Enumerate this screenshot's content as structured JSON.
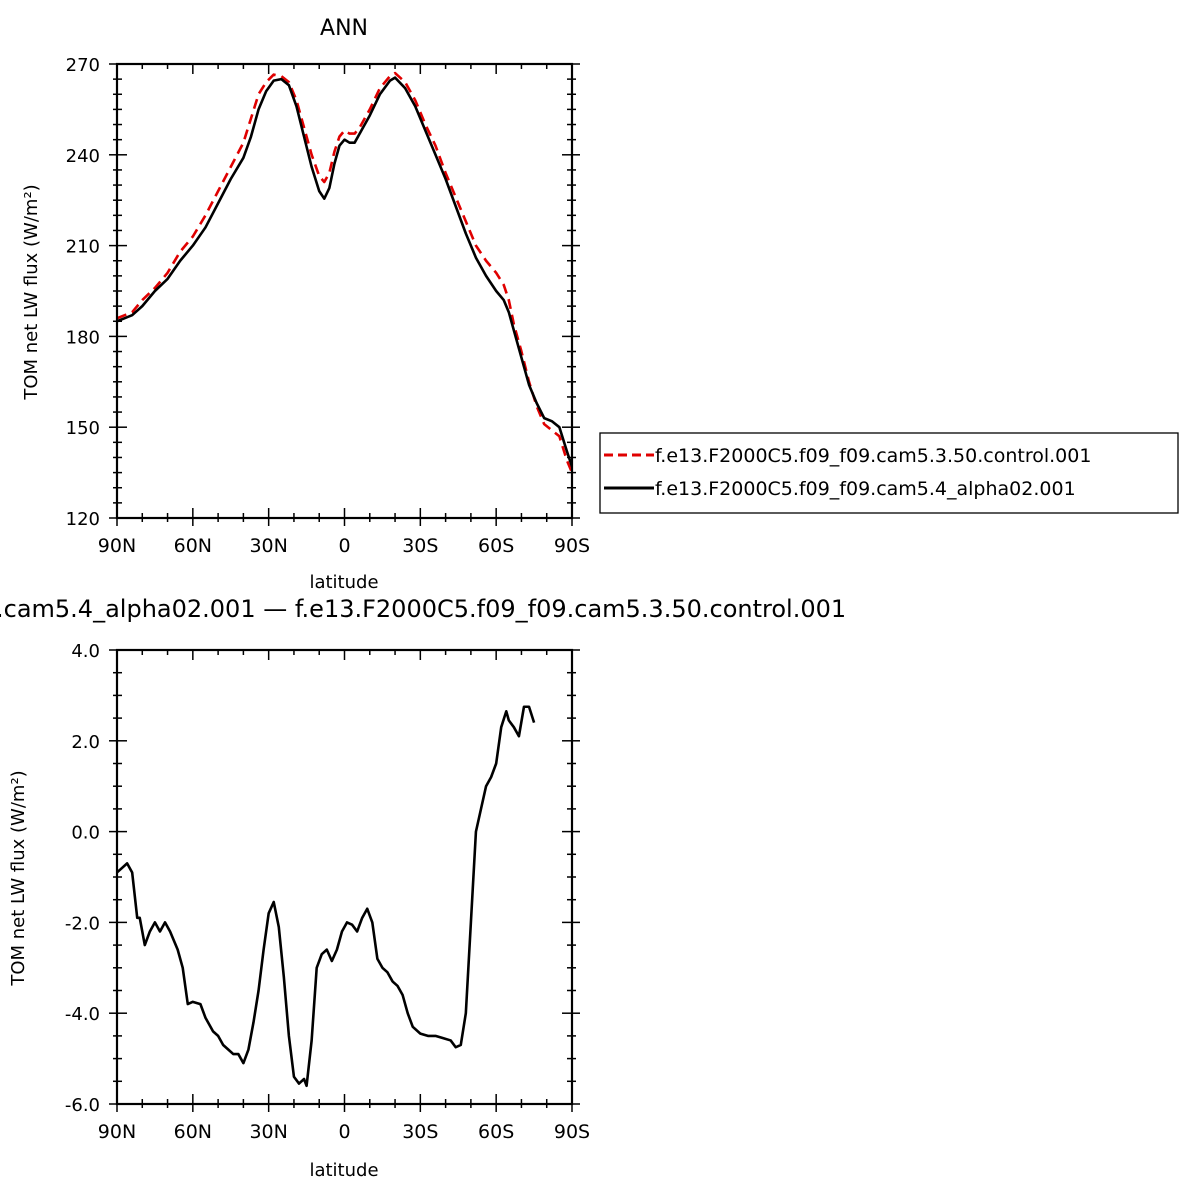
{
  "chart_data": [
    {
      "type": "line",
      "title": "ANN",
      "xlabel": "latitude",
      "ylabel": "TOM net LW flux (W/m²)",
      "xlim": [
        90,
        -90
      ],
      "ylim": [
        120,
        270
      ],
      "x_ticks": [
        "90N",
        "60N",
        "30N",
        "0",
        "30S",
        "60S",
        "90S"
      ],
      "y_ticks": [
        "120",
        "150",
        "180",
        "210",
        "240",
        "270"
      ],
      "legend_position": "right",
      "series": [
        {
          "name": "f.e13.F2000C5.f09_f09.cam5.3.50.control.001",
          "color": "#e00000",
          "style": "dashed",
          "points": [
            [
              90,
              186
            ],
            [
              84,
              188
            ],
            [
              80,
              192
            ],
            [
              75,
              196
            ],
            [
              70,
              201
            ],
            [
              65,
              208
            ],
            [
              60,
              213
            ],
            [
              55,
              220
            ],
            [
              50,
              228
            ],
            [
              45,
              236
            ],
            [
              40,
              244
            ],
            [
              37,
              252
            ],
            [
              34,
              260
            ],
            [
              31,
              264
            ],
            [
              28,
              266.5
            ],
            [
              25,
              266
            ],
            [
              22,
              264
            ],
            [
              19,
              258
            ],
            [
              16,
              249
            ],
            [
              13,
              240
            ],
            [
              10,
              233
            ],
            [
              8,
              231
            ],
            [
              6,
              234
            ],
            [
              4,
              241
            ],
            [
              2,
              246
            ],
            [
              0,
              248
            ],
            [
              -2,
              247
            ],
            [
              -4,
              247
            ],
            [
              -6,
              249
            ],
            [
              -10,
              255
            ],
            [
              -14,
              262
            ],
            [
              -18,
              266
            ],
            [
              -20,
              267
            ],
            [
              -24,
              264
            ],
            [
              -28,
              258
            ],
            [
              -32,
              250
            ],
            [
              -36,
              243
            ],
            [
              -40,
              234
            ],
            [
              -44,
              226
            ],
            [
              -48,
              218
            ],
            [
              -52,
              210
            ],
            [
              -56,
              205
            ],
            [
              -60,
              201
            ],
            [
              -63,
              197
            ],
            [
              -65,
              192
            ],
            [
              -67,
              184
            ],
            [
              -70,
              175
            ],
            [
              -73,
              165
            ],
            [
              -76,
              157
            ],
            [
              -79,
              151
            ],
            [
              -82,
              149
            ],
            [
              -85,
              147
            ],
            [
              -88,
              139
            ],
            [
              -90,
              135
            ]
          ]
        },
        {
          "name": "f.e13.F2000C5.f09_f09.cam5.4_alpha02.001",
          "color": "#000000",
          "style": "solid",
          "points": [
            [
              90,
              185
            ],
            [
              84,
              187
            ],
            [
              80,
              190
            ],
            [
              75,
              195
            ],
            [
              70,
              199
            ],
            [
              65,
              205
            ],
            [
              60,
              210
            ],
            [
              55,
              216
            ],
            [
              50,
              224
            ],
            [
              45,
              232
            ],
            [
              40,
              239
            ],
            [
              37,
              246
            ],
            [
              34,
              255
            ],
            [
              31,
              261
            ],
            [
              28,
              264.5
            ],
            [
              25,
              265
            ],
            [
              22,
              263
            ],
            [
              19,
              256
            ],
            [
              16,
              246
            ],
            [
              13,
              236
            ],
            [
              10,
              228
            ],
            [
              8,
              225.5
            ],
            [
              6,
              229
            ],
            [
              4,
              237
            ],
            [
              2,
              243
            ],
            [
              0,
              245
            ],
            [
              -2,
              244
            ],
            [
              -4,
              244
            ],
            [
              -6,
              247
            ],
            [
              -10,
              253
            ],
            [
              -14,
              260
            ],
            [
              -18,
              264.5
            ],
            [
              -20,
              265.5
            ],
            [
              -24,
              262
            ],
            [
              -28,
              256
            ],
            [
              -32,
              248
            ],
            [
              -36,
              240
            ],
            [
              -40,
              232
            ],
            [
              -44,
              223
            ],
            [
              -48,
              214
            ],
            [
              -52,
              206
            ],
            [
              -56,
              200
            ],
            [
              -60,
              195
            ],
            [
              -63,
              192
            ],
            [
              -65,
              188
            ],
            [
              -67,
              182
            ],
            [
              -70,
              173
            ],
            [
              -73,
              164
            ],
            [
              -76,
              158
            ],
            [
              -79,
              153
            ],
            [
              -82,
              152
            ],
            [
              -85,
              150
            ],
            [
              -88,
              142
            ],
            [
              -90,
              137
            ]
          ]
        }
      ]
    },
    {
      "type": "line",
      "title": ".cam5.4_alpha02.001  —  f.e13.F2000C5.f09_f09.cam5.3.50.control.001",
      "xlabel": "latitude",
      "ylabel": "TOM net LW flux (W/m²)",
      "xlim": [
        90,
        -90
      ],
      "ylim": [
        -6.0,
        4.0
      ],
      "x_ticks": [
        "90N",
        "60N",
        "30N",
        "0",
        "30S",
        "60S",
        "90S"
      ],
      "y_ticks": [
        "-6.0",
        "-4.0",
        "-2.0",
        "0.0",
        "2.0",
        "4.0"
      ],
      "series": [
        {
          "color": "#000000",
          "style": "solid",
          "points": [
            [
              90,
              -0.9
            ],
            [
              88,
              -0.8
            ],
            [
              86,
              -0.7
            ],
            [
              84,
              -0.9
            ],
            [
              82,
              -1.9
            ],
            [
              81,
              -1.9
            ],
            [
              79,
              -2.5
            ],
            [
              77,
              -2.2
            ],
            [
              75,
              -2.0
            ],
            [
              73,
              -2.2
            ],
            [
              71,
              -2.0
            ],
            [
              69,
              -2.2
            ],
            [
              66,
              -2.6
            ],
            [
              64,
              -3.0
            ],
            [
              62,
              -3.8
            ],
            [
              60,
              -3.75
            ],
            [
              57,
              -3.8
            ],
            [
              55,
              -4.1
            ],
            [
              52,
              -4.4
            ],
            [
              50,
              -4.5
            ],
            [
              48,
              -4.7
            ],
            [
              46,
              -4.8
            ],
            [
              44,
              -4.9
            ],
            [
              42,
              -4.9
            ],
            [
              40,
              -5.1
            ],
            [
              38,
              -4.8
            ],
            [
              36,
              -4.2
            ],
            [
              34,
              -3.5
            ],
            [
              32,
              -2.6
            ],
            [
              30,
              -1.8
            ],
            [
              28,
              -1.55
            ],
            [
              26,
              -2.1
            ],
            [
              24,
              -3.2
            ],
            [
              22,
              -4.5
            ],
            [
              20,
              -5.4
            ],
            [
              18,
              -5.55
            ],
            [
              16,
              -5.45
            ],
            [
              15,
              -5.6
            ],
            [
              13,
              -4.6
            ],
            [
              11,
              -3.0
            ],
            [
              9,
              -2.7
            ],
            [
              7,
              -2.6
            ],
            [
              5,
              -2.85
            ],
            [
              3,
              -2.6
            ],
            [
              1,
              -2.2
            ],
            [
              -1,
              -2.0
            ],
            [
              -3,
              -2.05
            ],
            [
              -5,
              -2.2
            ],
            [
              -7,
              -1.9
            ],
            [
              -9,
              -1.7
            ],
            [
              -11,
              -2.0
            ],
            [
              -13,
              -2.8
            ],
            [
              -15,
              -3.0
            ],
            [
              -17,
              -3.1
            ],
            [
              -19,
              -3.3
            ],
            [
              -21,
              -3.4
            ],
            [
              -23,
              -3.6
            ],
            [
              -25,
              -4.0
            ],
            [
              -27,
              -4.3
            ],
            [
              -30,
              -4.45
            ],
            [
              -33,
              -4.5
            ],
            [
              -36,
              -4.5
            ],
            [
              -39,
              -4.55
            ],
            [
              -42,
              -4.6
            ],
            [
              -44,
              -4.75
            ],
            [
              -46,
              -4.7
            ],
            [
              -48,
              -4.0
            ],
            [
              -50,
              -2.0
            ],
            [
              -52,
              0.0
            ],
            [
              -54,
              0.5
            ],
            [
              -56,
              1.0
            ],
            [
              -58,
              1.2
            ],
            [
              -60,
              1.5
            ],
            [
              -62,
              2.3
            ],
            [
              -64,
              2.65
            ],
            [
              -65,
              2.45
            ],
            [
              -67,
              2.3
            ],
            [
              -69,
              2.1
            ],
            [
              -71,
              2.75
            ],
            [
              -73,
              2.75
            ],
            [
              -75,
              2.4
            ]
          ]
        }
      ]
    }
  ]
}
